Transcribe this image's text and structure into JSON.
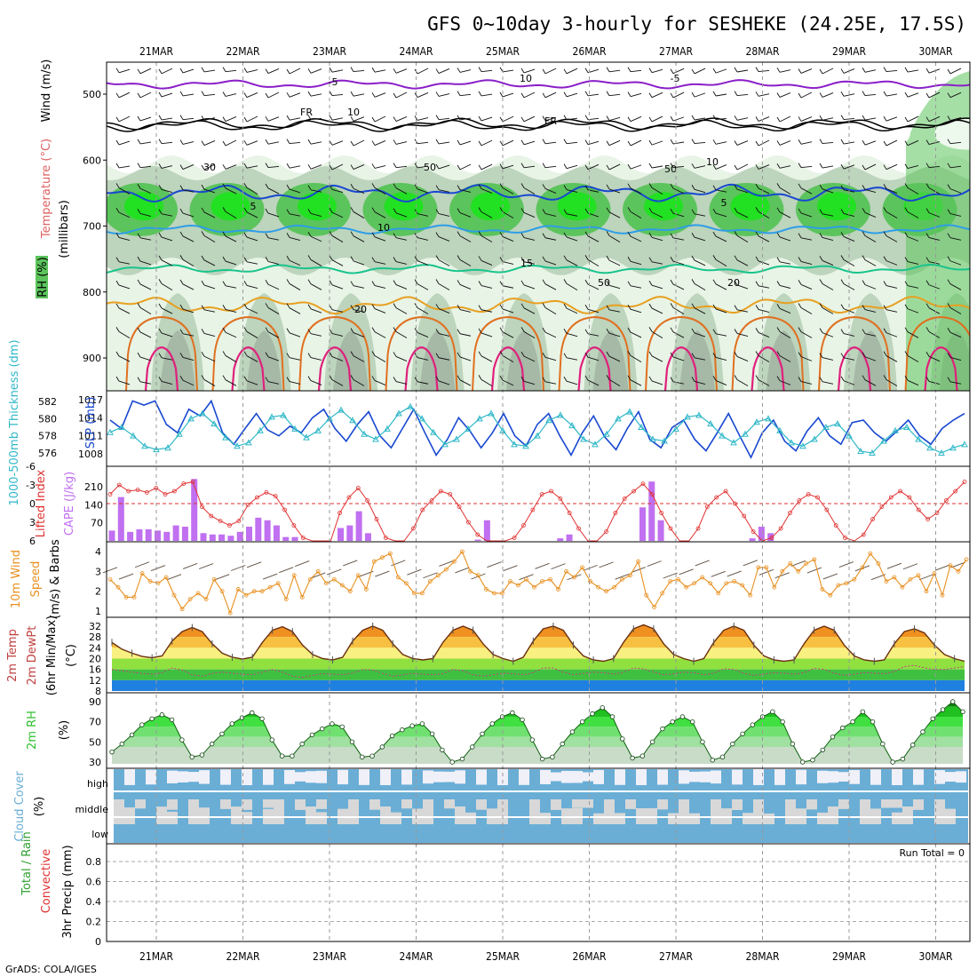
{
  "title": "GFS 0~10day 3-hourly for SESHEKE (24.25E, 17.5S)",
  "credit": "GrADS: COLA/IGES",
  "run_total": "Run Total = 0",
  "dates": [
    "21MAR",
    "22MAR",
    "23MAR",
    "24MAR",
    "25MAR",
    "26MAR",
    "27MAR",
    "28MAR",
    "29MAR",
    "30MAR"
  ],
  "colors": {
    "rh_light": "#e8f4e6",
    "rh_mid": "#bdd4bd",
    "rh_dark": "#a6b8a6",
    "rh_green": "#5cc45c",
    "rh_bright": "#22e022",
    "t_purple": "#8a1ec8",
    "t_black": "#000000",
    "t_blue": "#1848d0",
    "t_lightblue": "#2e9ee8",
    "t_teal": "#18c48c",
    "t_orange": "#e8a020",
    "t_darkorange": "#e07020",
    "t_magenta": "#e0207c",
    "slp": "#1848d0",
    "thickness": "#30b8c8",
    "cape": "#c070f0",
    "li": "#e03030",
    "wind10": "#e89020",
    "cloud": "#6aaed6",
    "cloud_gap": "#d8d8d8",
    "cloud_white": "#f0f0f8",
    "rh2m_green": "#30c030"
  },
  "chart_data": [
    {
      "id": "upper_air",
      "type": "heatmap",
      "ylabel": "(millibars)",
      "ylabels_left": [
        "Wind (m/s)",
        "Temperature (°C)",
        "RH (%)"
      ],
      "yticks": [
        "500",
        "600",
        "700",
        "800",
        "900"
      ],
      "contour_labels": [
        "-5",
        "FR",
        "5",
        "10",
        "15",
        "20",
        "10",
        "50",
        "-5",
        "FR",
        "5",
        "50",
        "20",
        "30",
        "50",
        "10",
        "10"
      ]
    },
    {
      "id": "slp_thickness",
      "type": "line",
      "ylabels": [
        "1000-500mb Thickness (dm)",
        "SLP (mb)"
      ],
      "thickness_ticks": [
        "582",
        "580",
        "578",
        "576"
      ],
      "slp_ticks": [
        "1017",
        "1014",
        "1011",
        "1008"
      ],
      "series": [
        {
          "name": "SLP (mb)",
          "values": [
            1013.6,
            1012.2,
            1016.8,
            1016.1,
            1016.8,
            1012.9,
            1011.5,
            1015.4,
            1014.3,
            1016.8,
            1011.5,
            1009.6,
            1012.2,
            1014.7,
            1012.0,
            1011.0,
            1012.6,
            1011.5,
            1014.0,
            1015.4,
            1012.2,
            1010.1,
            1012.9,
            1015.0,
            1011.0,
            1009.0,
            1012.2,
            1015.4,
            1011.5,
            1007.8,
            1010.4,
            1014.0,
            1011.8,
            1009.0,
            1011.5,
            1014.7,
            1011.0,
            1009.3,
            1012.9,
            1014.7,
            1011.0,
            1007.8,
            1011.5,
            1014.3,
            1010.8,
            1008.7,
            1012.2,
            1015.0,
            1010.4,
            1009.0,
            1012.4,
            1013.6,
            1010.4,
            1008.5,
            1011.5,
            1014.7,
            1011.0,
            1007.4,
            1011.5,
            1013.6,
            1010.1,
            1008.5,
            1011.8,
            1014.0,
            1011.0,
            1009.6,
            1013.2,
            1013.6,
            1011.5,
            1010.1,
            1011.8,
            1013.6,
            1011.0,
            1009.6,
            1012.2,
            1013.6,
            1014.7
          ]
        },
        {
          "name": "1000-500mb Thickness (dm)",
          "values": [
            578.4,
            579.0,
            578.0,
            576.8,
            576.4,
            576.6,
            578.2,
            580.0,
            580.6,
            579.4,
            577.8,
            576.8,
            577.2,
            578.6,
            580.2,
            580.4,
            578.8,
            577.8,
            578.6,
            580.0,
            581.0,
            579.8,
            578.2,
            577.6,
            578.8,
            580.6,
            581.4,
            580.0,
            578.4,
            577.0,
            577.6,
            578.8,
            580.0,
            580.6,
            578.6,
            577.0,
            576.8,
            578.0,
            579.8,
            580.4,
            579.2,
            577.6,
            577.0,
            578.2,
            580.0,
            580.8,
            579.0,
            577.6,
            577.4,
            578.8,
            580.2,
            580.4,
            579.4,
            578.0,
            577.2,
            578.2,
            579.6,
            580.0,
            578.6,
            577.2,
            576.8,
            577.6,
            579.0,
            579.4,
            578.0,
            576.2,
            576.0,
            577.4,
            578.6,
            579.0,
            577.6,
            576.6,
            576.0,
            576.6,
            577.0
          ]
        }
      ]
    },
    {
      "id": "cape_li",
      "type": "bar",
      "ylabels": [
        "Lifted Index",
        "CAPE (J/kg)"
      ],
      "li_ticks": [
        "-6",
        "-3",
        "0",
        "3",
        "6"
      ],
      "cape_ticks": [
        "210",
        "140",
        "70"
      ],
      "series": [
        {
          "name": "CAPE (J/kg)",
          "values": [
            40,
            170,
            35,
            45,
            45,
            40,
            35,
            60,
            55,
            240,
            30,
            25,
            25,
            20,
            35,
            55,
            90,
            80,
            60,
            15,
            15,
            0,
            0,
            0,
            0,
            50,
            60,
            115,
            30,
            0,
            0,
            0,
            0,
            0,
            0,
            0,
            0,
            0,
            0,
            0,
            5,
            80,
            0,
            0,
            0,
            0,
            0,
            0,
            0,
            10,
            25,
            0,
            0,
            0,
            0,
            0,
            0,
            0,
            130,
            230,
            80,
            0,
            0,
            0,
            0,
            0,
            0,
            0,
            0,
            0,
            10,
            55,
            30,
            0,
            0,
            0,
            0,
            0,
            0,
            0,
            0,
            0,
            0,
            0,
            0,
            0,
            0,
            0,
            0,
            0,
            0,
            0,
            0,
            0
          ]
        },
        {
          "name": "Lifted Index",
          "values": [
            -1.5,
            -3.0,
            -2.0,
            -2.2,
            -1.8,
            -2.5,
            -1.5,
            -2.0,
            -3.2,
            -3.5,
            0.5,
            2.0,
            2.8,
            3.5,
            2.8,
            0.2,
            -1.0,
            -1.8,
            -1.2,
            1.0,
            3.5,
            5.5,
            6.0,
            6.0,
            6.0,
            1.5,
            -1.0,
            -2.5,
            -0.5,
            2.5,
            5.5,
            6.0,
            6.0,
            4.0,
            1.0,
            -0.5,
            -2.0,
            -1.5,
            0.5,
            3.0,
            5.0,
            6.0,
            6.0,
            6.0,
            5.5,
            3.5,
            1.0,
            -1.5,
            -2.0,
            -0.8,
            1.5,
            4.0,
            6.0,
            6.0,
            4.5,
            1.5,
            -0.8,
            -2.0,
            -3.2,
            -1.5,
            1.5,
            4.0,
            6.0,
            6.0,
            4.0,
            0.5,
            -1.0,
            -2.0,
            0.0,
            2.0,
            4.5,
            6.0,
            5.5,
            4.0,
            1.5,
            -0.5,
            -1.5,
            -1.0,
            1.0,
            3.5,
            5.5,
            6.0,
            5.0,
            2.5,
            0.5,
            -1.0,
            -2.0,
            -1.0,
            1.0,
            2.5,
            1.5,
            -0.5,
            -2.0,
            -3.5
          ]
        }
      ]
    },
    {
      "id": "wind10m",
      "type": "line",
      "ylabels": [
        "10m Wind",
        "Speed",
        "(m/s) & Barbs"
      ],
      "yticks": [
        "4",
        "3",
        "2",
        "1"
      ],
      "series": [
        {
          "name": "Speed",
          "values": [
            2.6,
            2.2,
            1.7,
            1.7,
            2.9,
            2.5,
            2.4,
            2.7,
            1.8,
            1.1,
            1.6,
            1.9,
            1.6,
            2.6,
            2.0,
            0.9,
            2.1,
            1.8,
            2.0,
            2.0,
            2.2,
            2.4,
            1.6,
            2.8,
            1.7,
            2.6,
            3.0,
            2.4,
            2.6,
            2.3,
            2.0,
            2.8,
            2.1,
            3.5,
            3.7,
            3.9,
            2.7,
            2.4,
            1.9,
            1.9,
            2.5,
            2.8,
            3.1,
            3.5,
            4.0,
            3.0,
            2.8,
            2.1,
            1.9,
            1.9,
            2.5,
            2.3,
            2.6,
            2.2,
            2.5,
            2.6,
            2.1,
            3.0,
            2.7,
            3.2,
            2.5,
            2.2,
            2.0,
            2.2,
            2.6,
            2.8,
            3.5,
            1.8,
            1.2,
            1.9,
            2.5,
            2.6,
            2.2,
            2.4,
            2.7,
            2.4,
            1.9,
            2.4,
            2.5,
            2.3,
            1.8,
            3.2,
            3.2,
            2.2,
            3.0,
            3.4,
            3.0,
            3.4,
            3.6,
            2.1,
            1.8,
            2.3,
            2.4,
            2.6,
            3.2,
            3.9,
            3.4,
            2.5,
            2.7,
            2.2,
            2.6,
            2.8,
            2.0,
            2.9,
            1.8,
            3.3,
            3.0,
            3.6
          ]
        }
      ]
    },
    {
      "id": "temp2m",
      "type": "area",
      "ylabels": [
        "2m Temp",
        "2m DewPt",
        "(6hr Min/Max)",
        "(°C)"
      ],
      "yticks": [
        "32",
        "28",
        "24",
        "20",
        "16",
        "12",
        "8"
      ],
      "series": [
        {
          "name": "2m Temp",
          "values": [
            26.0,
            23.5,
            22.0,
            20.8,
            20.3,
            21.0,
            26.5,
            30.0,
            31.5,
            30.0,
            25.5,
            22.0,
            20.5,
            19.8,
            20.5,
            26.0,
            30.5,
            31.8,
            30.0,
            25.0,
            21.5,
            20.0,
            19.5,
            20.5,
            26.5,
            30.5,
            32.0,
            30.5,
            25.5,
            21.5,
            20.0,
            19.5,
            20.0,
            26.0,
            30.5,
            32.0,
            30.5,
            25.5,
            21.5,
            20.0,
            19.0,
            20.5,
            26.5,
            31.0,
            32.0,
            30.5,
            25.0,
            21.0,
            19.5,
            19.0,
            20.0,
            26.0,
            31.0,
            32.5,
            31.0,
            25.5,
            21.5,
            20.0,
            19.0,
            20.0,
            26.0,
            30.5,
            32.0,
            30.5,
            25.0,
            21.0,
            19.5,
            19.0,
            19.5,
            25.5,
            30.5,
            32.0,
            30.5,
            25.0,
            21.0,
            19.5,
            19.0,
            19.5,
            25.5,
            30.0,
            31.0,
            29.5,
            25.0,
            21.5,
            20.0,
            19.0
          ]
        },
        {
          "name": "2m DewPt",
          "values": [
            16.0,
            15.5,
            15.0,
            14.5,
            14.2,
            14.8,
            16.5,
            15.8,
            14.0,
            13.5,
            14.5,
            15.0,
            14.6,
            14.2,
            14.0,
            15.0,
            16.0,
            15.0,
            13.5,
            13.0,
            13.8,
            14.4,
            14.2,
            14.0,
            14.6,
            16.0,
            15.8,
            14.5,
            13.5,
            14.0,
            14.5,
            14.2,
            14.0,
            14.4,
            16.0,
            15.5,
            14.0,
            13.5,
            14.0,
            14.6,
            14.4,
            14.0,
            14.8,
            16.5,
            16.5,
            15.0,
            14.0,
            14.5,
            15.0,
            14.8,
            14.2,
            15.0,
            16.5,
            16.2,
            15.0,
            14.0,
            14.4,
            15.0,
            14.8,
            14.0,
            14.6,
            16.2,
            16.0,
            14.5,
            13.8,
            14.2,
            14.8,
            14.6,
            14.2,
            14.8,
            16.4,
            16.0,
            14.6,
            13.8,
            14.2,
            14.8,
            14.6,
            14.4,
            15.2,
            17.0,
            17.5,
            16.5,
            16.0,
            16.0,
            16.5,
            17.0
          ]
        }
      ]
    },
    {
      "id": "rh2m",
      "type": "area",
      "ylabels": [
        "2m RH",
        "(%)"
      ],
      "yticks": [
        "90",
        "70",
        "50",
        "30"
      ],
      "series": [
        {
          "name": "2m RH",
          "values": [
            40,
            48,
            57,
            67,
            73,
            77,
            72,
            52,
            35,
            37,
            48,
            58,
            68,
            74,
            79,
            73,
            52,
            36,
            36,
            48,
            57,
            63,
            68,
            65,
            50,
            35,
            36,
            45,
            56,
            62,
            66,
            68,
            58,
            42,
            30,
            33,
            45,
            58,
            68,
            75,
            79,
            72,
            52,
            33,
            35,
            48,
            60,
            70,
            78,
            84,
            75,
            53,
            34,
            36,
            50,
            63,
            70,
            75,
            70,
            50,
            32,
            35,
            48,
            58,
            67,
            75,
            80,
            70,
            48,
            30,
            32,
            42,
            55,
            64,
            70,
            80,
            70,
            48,
            30,
            33,
            47,
            60,
            73,
            82,
            90,
            80
          ]
        }
      ]
    },
    {
      "id": "cloud",
      "type": "heatmap",
      "ylabels": [
        "Cloud Cover",
        "(%)"
      ],
      "rows": [
        "high",
        "middle",
        "low"
      ]
    },
    {
      "id": "precip",
      "type": "bar",
      "ylabels": [
        "Total / Rain",
        "Convective",
        "3hr Precip (mm)"
      ],
      "yticks": [
        "0.8",
        "0.6",
        "0.4",
        "0.2",
        "0"
      ],
      "ylim": [
        0,
        1
      ],
      "values": []
    }
  ]
}
